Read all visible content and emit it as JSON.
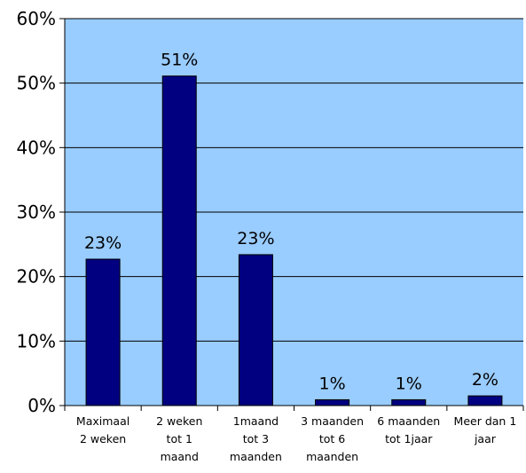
{
  "chart_data": {
    "type": "bar",
    "categories": [
      [
        "Maximaal",
        "2 weken"
      ],
      [
        "2 weken",
        "tot 1",
        "maand"
      ],
      [
        "1maand",
        "tot 3",
        "maanden"
      ],
      [
        "3 maanden",
        "tot 6",
        "maanden"
      ],
      [
        "6 maanden",
        "tot 1jaar"
      ],
      [
        "Meer dan 1",
        "jaar"
      ]
    ],
    "values": [
      22.7,
      51.1,
      23.4,
      0.9,
      0.9,
      1.5
    ],
    "data_labels": [
      "23%",
      "51%",
      "23%",
      "1%",
      "1%",
      "2%"
    ],
    "yticks": [
      0,
      10,
      20,
      30,
      40,
      50,
      60
    ],
    "ytick_labels": [
      "0%",
      "10%",
      "20%",
      "30%",
      "40%",
      "50%",
      "60%"
    ],
    "ylim": [
      0,
      60
    ],
    "title": "",
    "xlabel": "",
    "ylabel": "",
    "grid": true,
    "legend": "none",
    "colors": {
      "plot_background": "#99ccff",
      "bar_fill": "#000080",
      "bar_stroke": "#000000",
      "gridline": "#000000",
      "axis": "#000000"
    }
  }
}
